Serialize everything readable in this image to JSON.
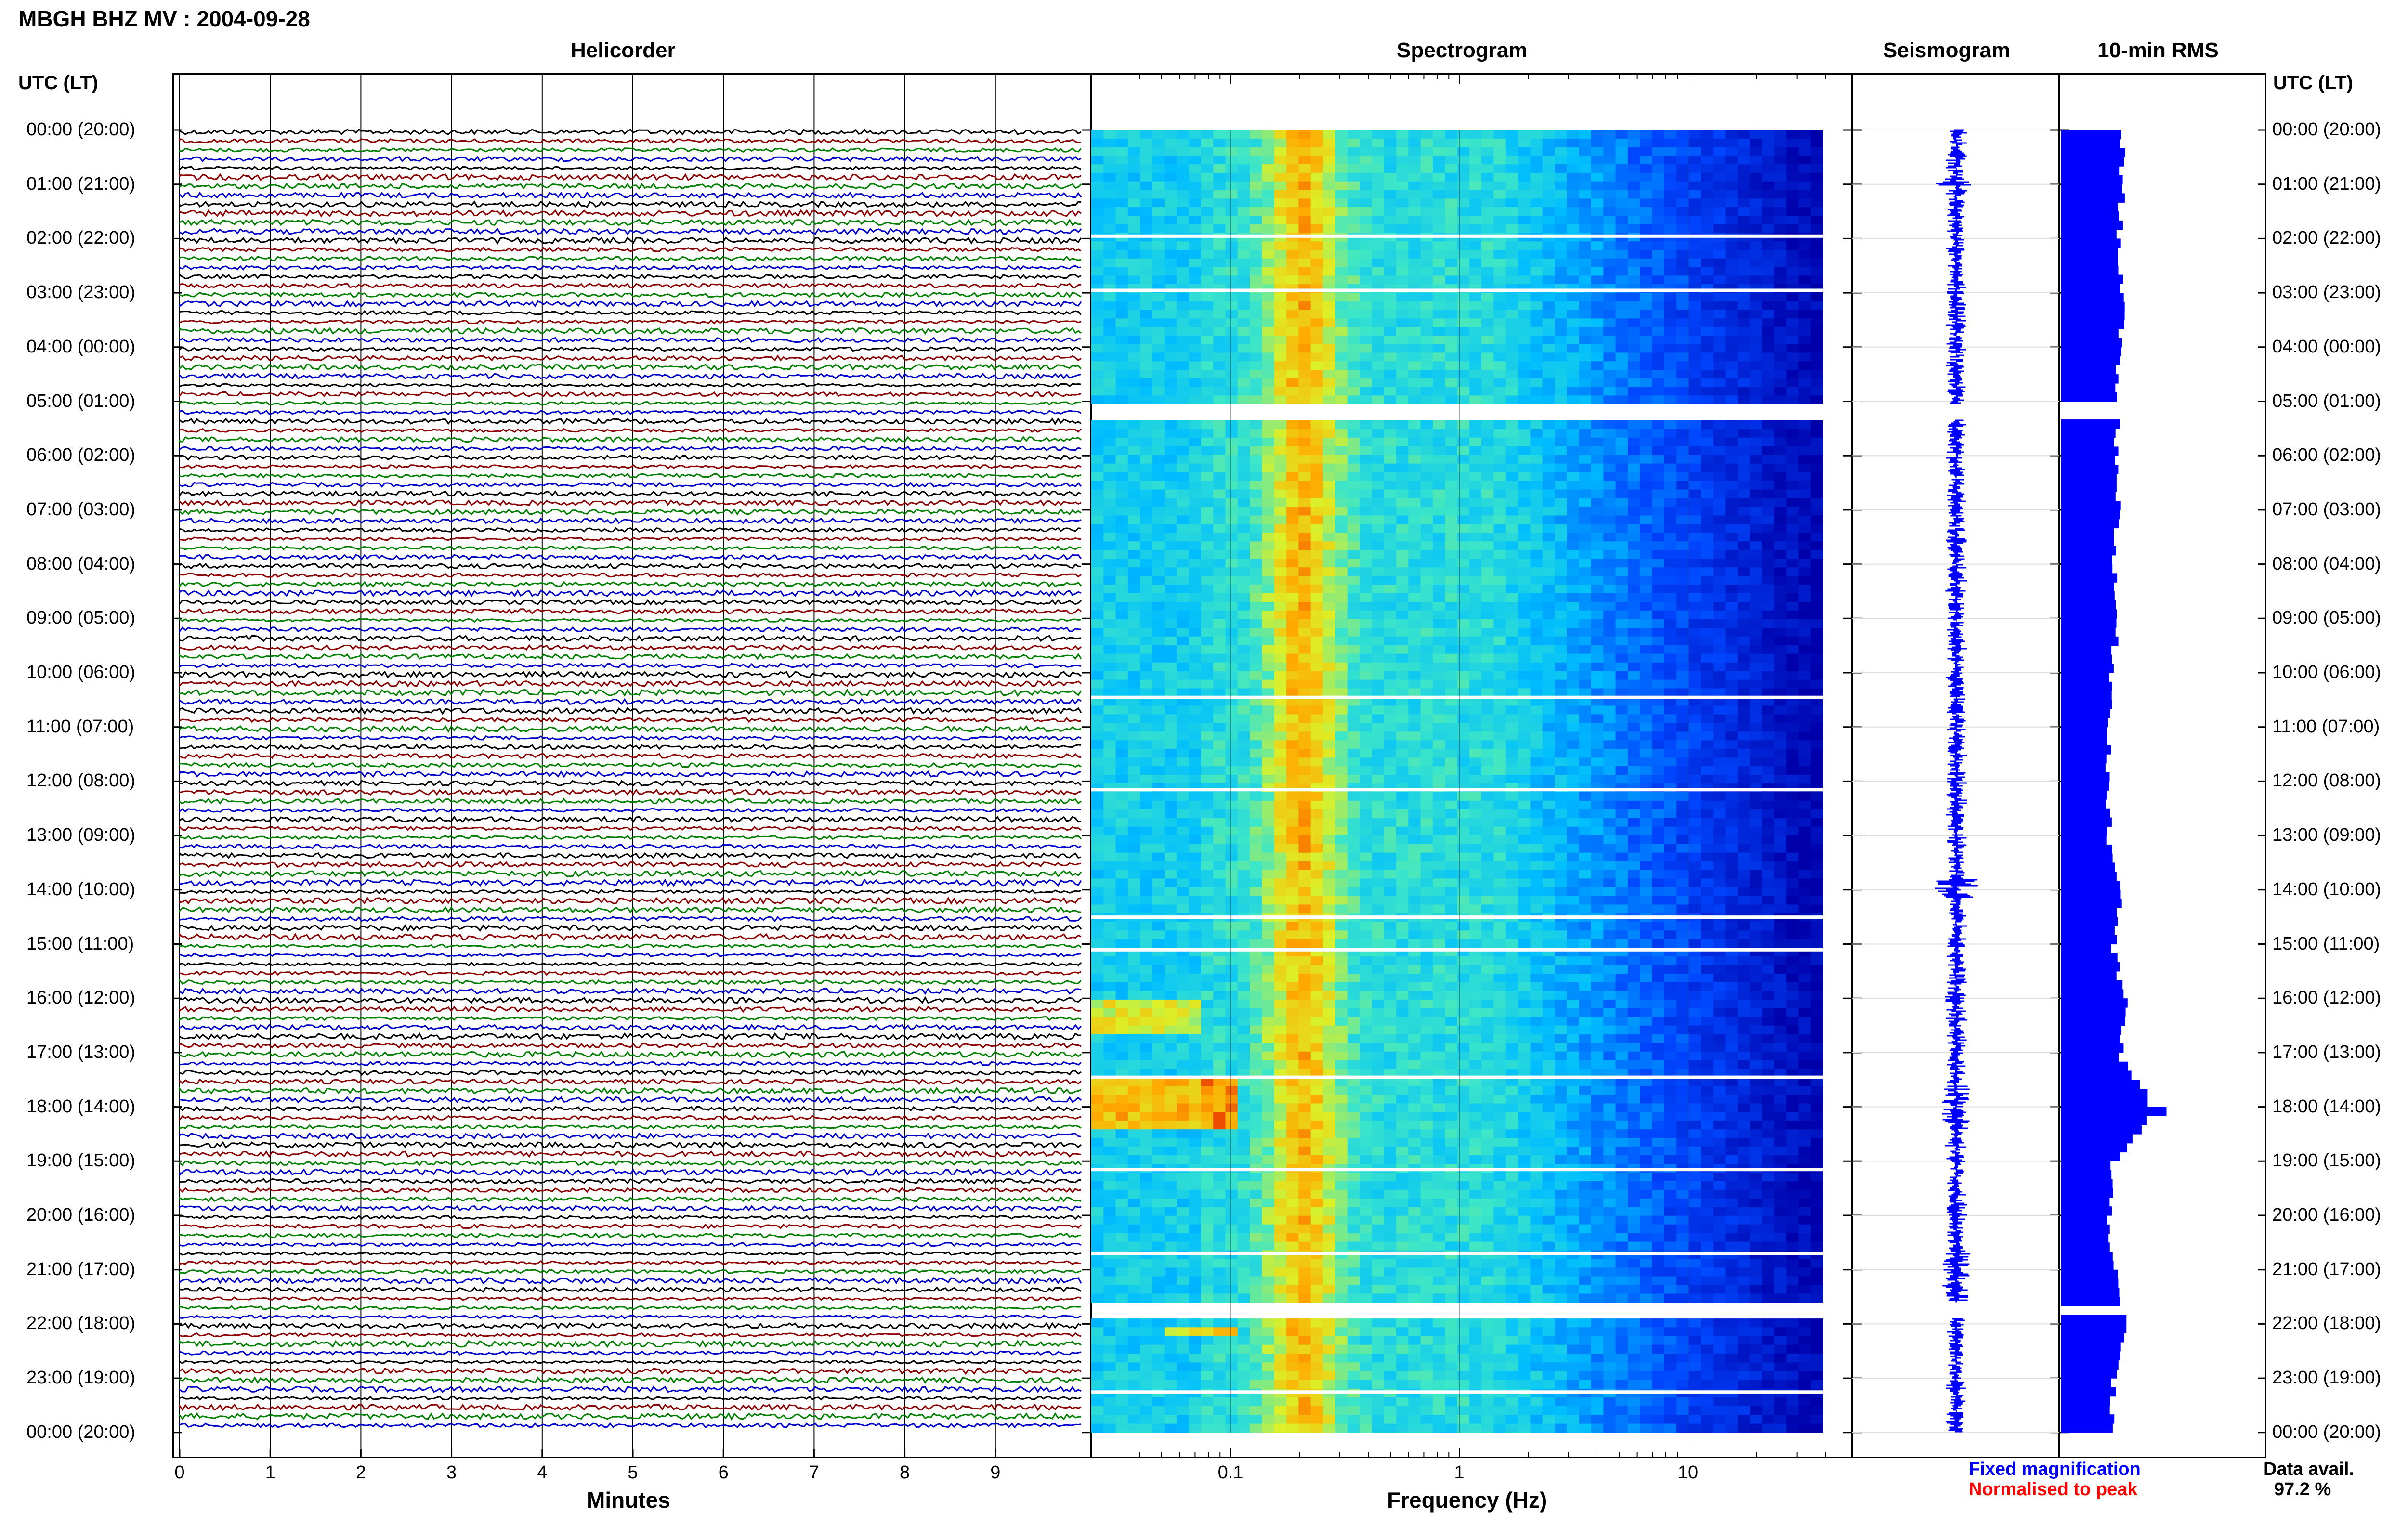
{
  "header": {
    "title": "MBGH BHZ MV : 2004-09-28",
    "utc_label": "UTC (LT)",
    "utc_label_right": "UTC (LT)"
  },
  "panels": {
    "helicorder": "Helicorder",
    "spectrogram": "Spectrogram",
    "seismogram": "Seismogram",
    "rms": "10-min RMS"
  },
  "axes": {
    "minutes_label": "Minutes",
    "frequency_label": "Frequency (Hz)",
    "minute_ticks": [
      "0",
      "1",
      "2",
      "3",
      "4",
      "5",
      "6",
      "7",
      "8",
      "9"
    ],
    "freq_ticks": [
      "0.1",
      "1",
      "10"
    ]
  },
  "time_labels": [
    "00:00 (20:00)",
    "01:00 (21:00)",
    "02:00 (22:00)",
    "03:00 (23:00)",
    "04:00 (00:00)",
    "05:00 (01:00)",
    "06:00 (02:00)",
    "07:00 (03:00)",
    "08:00 (04:00)",
    "09:00 (05:00)",
    "10:00 (06:00)",
    "11:00 (07:00)",
    "12:00 (08:00)",
    "13:00 (09:00)",
    "14:00 (10:00)",
    "15:00 (11:00)",
    "16:00 (12:00)",
    "17:00 (13:00)",
    "18:00 (14:00)",
    "19:00 (15:00)",
    "20:00 (16:00)",
    "21:00 (17:00)",
    "22:00 (18:00)",
    "23:00 (19:00)",
    "00:00 (20:00)"
  ],
  "legend": {
    "fixed": "Fixed magnification",
    "normalised": "Normalised to peak",
    "fixed_color": "#0000ff",
    "normalised_color": "#ff0000"
  },
  "availability": {
    "label": "Data avail.",
    "value": "97.2 %"
  },
  "colors": {
    "trace_colors": [
      "#000000",
      "#8b0000",
      "#008000",
      "#0000cd"
    ],
    "rms_bar": "#0000ff"
  },
  "chart_data": {
    "type": "bar",
    "title": "10-min RMS",
    "x_unit": "hour UTC",
    "rms_hourly_relative": [
      0.55,
      0.55,
      0.52,
      0.56,
      0.52,
      0.51,
      0.5,
      0.52,
      0.47,
      0.5,
      0.46,
      0.44,
      0.42,
      0.43,
      0.55,
      0.46,
      0.58,
      0.53,
      0.85,
      0.45,
      0.44,
      0.48,
      0.58,
      0.47,
      0.45
    ],
    "gaps_hours": [
      [
        5.05,
        5.35
      ],
      [
        21.6,
        21.9
      ]
    ],
    "data_availability_percent": 97.2
  }
}
